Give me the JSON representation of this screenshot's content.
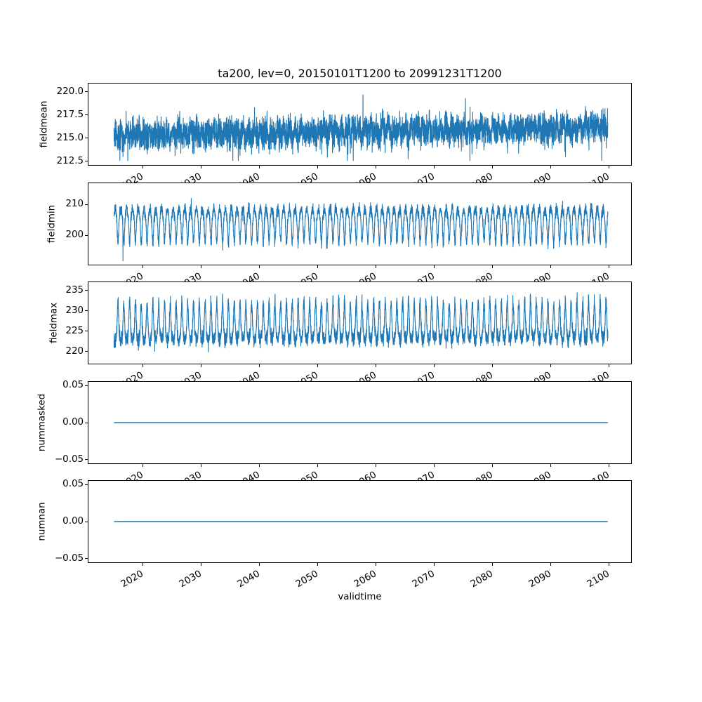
{
  "figure": {
    "title": "ta200, lev=0, 20150101T1200 to 20991231T1200",
    "xlabel": "validtime",
    "background": "#ffffff",
    "line_color": "#1f77b4",
    "frame_color": "#000000",
    "text_color": "#000000"
  },
  "xaxis": {
    "label": "validtime",
    "tick_labels": [
      "2020",
      "2030",
      "2040",
      "2050",
      "2060",
      "2070",
      "2080",
      "2090",
      "2100"
    ],
    "tick_values": [
      2020,
      2030,
      2040,
      2050,
      2060,
      2070,
      2080,
      2090,
      2100
    ],
    "xlim": [
      2010.6,
      2104.0
    ],
    "data_start": 2015.0,
    "data_end": 2100.0,
    "tick_label_rotation_deg": 30
  },
  "chart_data": [
    {
      "type": "line",
      "name": "fieldmean",
      "ylabel": "fieldmean",
      "color": "#1f77b4",
      "ylim": [
        212.1,
        220.9
      ],
      "ytick_values": [
        212.5,
        215.0,
        217.5,
        220.0
      ],
      "ytick_labels": [
        "212.5",
        "215.0",
        "217.5",
        "220.0"
      ],
      "approx_mean": 215.7,
      "approx_min": 212.55,
      "approx_max": 220.45,
      "signal": {
        "kind": "noisy",
        "seed": 42,
        "base": 215.3,
        "trend": 0.8,
        "seasonal_amp": 0.45,
        "noise_amp": 1.0,
        "comb_amp": 0,
        "comb_dir": 0,
        "spike_prob": 0.006,
        "clip_min": 212.55,
        "clip_max": 220.45
      }
    },
    {
      "type": "line",
      "name": "fieldmin",
      "ylabel": "fieldmin",
      "color": "#1f77b4",
      "ylim": [
        190.6,
        216.8
      ],
      "ytick_values": [
        200,
        210
      ],
      "ytick_labels": [
        "200",
        "210"
      ],
      "approx_mean": 204.5,
      "approx_min": 191.7,
      "approx_max": 215.5,
      "signal": {
        "kind": "noisy",
        "seed": 7,
        "base": 205.9,
        "trend": 0,
        "seasonal_amp": 2.6,
        "noise_amp": 1.2,
        "comb_amp": 5.5,
        "comb_dir": -1,
        "spike_prob": 0.002,
        "clip_min": 191.7,
        "clip_max": 215.5,
        "force_min_at": 0.018
      }
    },
    {
      "type": "line",
      "name": "fieldmax",
      "ylabel": "fieldmax",
      "color": "#1f77b4",
      "ylim": [
        217.0,
        237.0
      ],
      "ytick_values": [
        220,
        225,
        230,
        235
      ],
      "ytick_labels": [
        "220",
        "225",
        "230",
        "235"
      ],
      "approx_mean": 225.0,
      "approx_min": 217.9,
      "approx_max": 236.1,
      "signal": {
        "kind": "noisy",
        "seed": 13,
        "base": 224.2,
        "trend": 0.3,
        "seasonal_amp": -1.5,
        "noise_amp": 1.15,
        "comb_amp": 6.2,
        "comb_dir": 1,
        "spike_prob": 0.003,
        "clip_min": 217.9,
        "clip_max": 236.1
      }
    },
    {
      "type": "line",
      "name": "nummasked",
      "ylabel": "nummasked",
      "color": "#1f77b4",
      "ylim": [
        -0.055,
        0.055
      ],
      "ytick_values": [
        -0.05,
        0.0,
        0.05
      ],
      "ytick_labels": [
        "−0.05",
        "0.00",
        "0.05"
      ],
      "constant_value": 0.0,
      "signal": {
        "kind": "constant",
        "value": 0
      }
    },
    {
      "type": "line",
      "name": "numnan",
      "ylabel": "numnan",
      "color": "#1f77b4",
      "ylim": [
        -0.055,
        0.055
      ],
      "ytick_values": [
        -0.05,
        0.0,
        0.05
      ],
      "ytick_labels": [
        "−0.05",
        "0.00",
        "0.05"
      ],
      "constant_value": 0.0,
      "signal": {
        "kind": "constant",
        "value": 0
      }
    }
  ]
}
